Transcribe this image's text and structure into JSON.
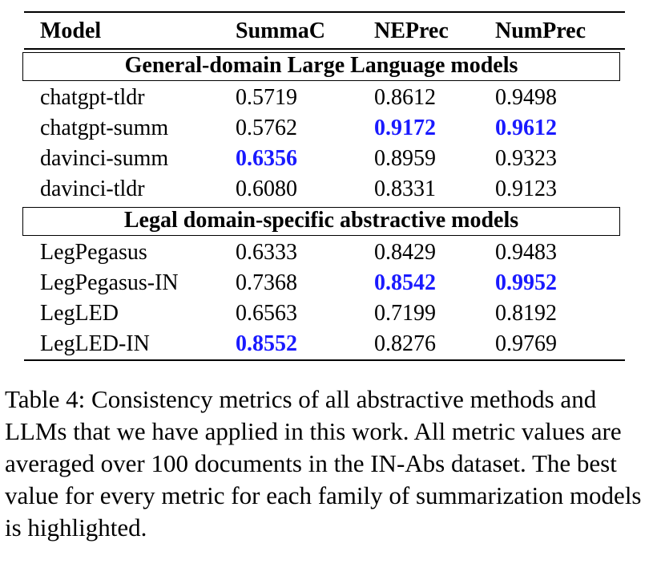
{
  "table": {
    "columns": [
      "Model",
      "SummaC",
      "NEPrec",
      "NumPrec"
    ],
    "groups": [
      {
        "title": "General-domain Large Language models",
        "rows": [
          {
            "model": "chatgpt-tldr",
            "summac": "0.5719",
            "neprec": "0.8612",
            "numprec": "0.9498",
            "best": []
          },
          {
            "model": "chatgpt-summ",
            "summac": "0.5762",
            "neprec": "0.9172",
            "numprec": "0.9612",
            "best": [
              "neprec",
              "numprec"
            ]
          },
          {
            "model": "davinci-summ",
            "summac": "0.6356",
            "neprec": "0.8959",
            "numprec": "0.9323",
            "best": [
              "summac"
            ]
          },
          {
            "model": "davinci-tldr",
            "summac": "0.6080",
            "neprec": "0.8331",
            "numprec": "0.9123",
            "best": []
          }
        ]
      },
      {
        "title": "Legal domain-specific abstractive models",
        "rows": [
          {
            "model": "LegPegasus",
            "summac": "0.6333",
            "neprec": "0.8429",
            "numprec": "0.9483",
            "best": []
          },
          {
            "model": "LegPegasus-IN",
            "summac": "0.7368",
            "neprec": "0.8542",
            "numprec": "0.9952",
            "best": [
              "neprec",
              "numprec"
            ]
          },
          {
            "model": "LegLED",
            "summac": "0.6563",
            "neprec": "0.7199",
            "numprec": "0.8192",
            "best": []
          },
          {
            "model": "LegLED-IN",
            "summac": "0.8552",
            "neprec": "0.8276",
            "numprec": "0.9769",
            "best": [
              "summac"
            ]
          }
        ]
      }
    ]
  },
  "colors": {
    "highlight": "#1a1aff"
  },
  "caption": "Table 4: Consistency metrics of all abstractive methods and LLMs that we have applied in this work. All metric values are averaged over 100 documents in the IN-Abs dataset. The best value for every metric for each family of summarization models is highlighted."
}
